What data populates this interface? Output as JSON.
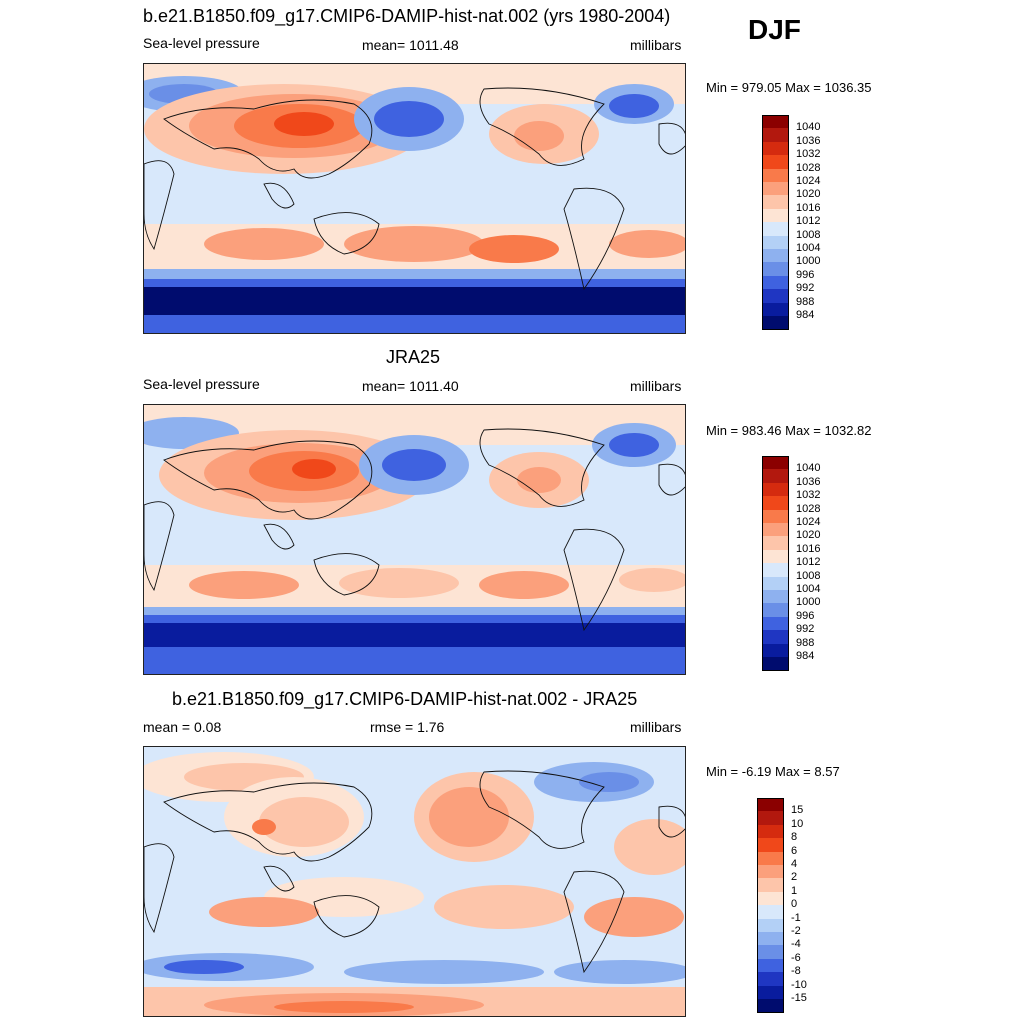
{
  "season_label": "DJF",
  "panels": [
    {
      "title": "b.e21.B1850.f09_g17.CMIP6-DAMIP-hist-nat.002 (yrs 1980-2004)",
      "left_label": "Sea-level pressure",
      "center_label": "mean= 1011.48",
      "right_label": "millibars",
      "minmax": "Min = 979.05 Max = 1036.35",
      "colorbar_labels": [
        "1040",
        "1036",
        "1032",
        "1028",
        "1024",
        "1020",
        "1016",
        "1012",
        "1008",
        "1004",
        "1000",
        "996",
        "992",
        "988",
        "984"
      ]
    },
    {
      "title": "JRA25",
      "left_label": "Sea-level pressure",
      "center_label": "mean= 1011.40",
      "right_label": "millibars",
      "minmax": "Min = 983.46 Max = 1032.82",
      "colorbar_labels": [
        "1040",
        "1036",
        "1032",
        "1028",
        "1024",
        "1020",
        "1016",
        "1012",
        "1008",
        "1004",
        "1000",
        "996",
        "992",
        "988",
        "984"
      ]
    },
    {
      "title": "b.e21.B1850.f09_g17.CMIP6-DAMIP-hist-nat.002 - JRA25",
      "left_label": "mean =   0.08",
      "center_label": "rmse =   1.76",
      "right_label": "millibars",
      "minmax": "Min =  -6.19 Max =   8.57",
      "colorbar_labels": [
        "15",
        "10",
        "8",
        "6",
        "4",
        "2",
        "1",
        "0",
        "-1",
        "-2",
        "-4",
        "-6",
        "-8",
        "-10",
        "-15"
      ]
    }
  ],
  "colors": {
    "abs_scale": [
      "#8b0000",
      "#b2180e",
      "#d52b0f",
      "#f0481a",
      "#f97a4a",
      "#fba07c",
      "#fdc5aa",
      "#fde4d4",
      "#d8e8fb",
      "#b3d0f6",
      "#8eb1ef",
      "#6a8fe7",
      "#3f62e0",
      "#1f36c2",
      "#091c9e",
      "#000c6e"
    ],
    "diff_scale": [
      "#8b0000",
      "#b2180e",
      "#d52b0f",
      "#f0481a",
      "#f97a4a",
      "#fba07c",
      "#fdc5aa",
      "#fde4d4",
      "#d8e8fb",
      "#b3d0f6",
      "#8eb1ef",
      "#6a8fe7",
      "#3f62e0",
      "#1f36c2",
      "#091c9e",
      "#000c6e"
    ]
  }
}
